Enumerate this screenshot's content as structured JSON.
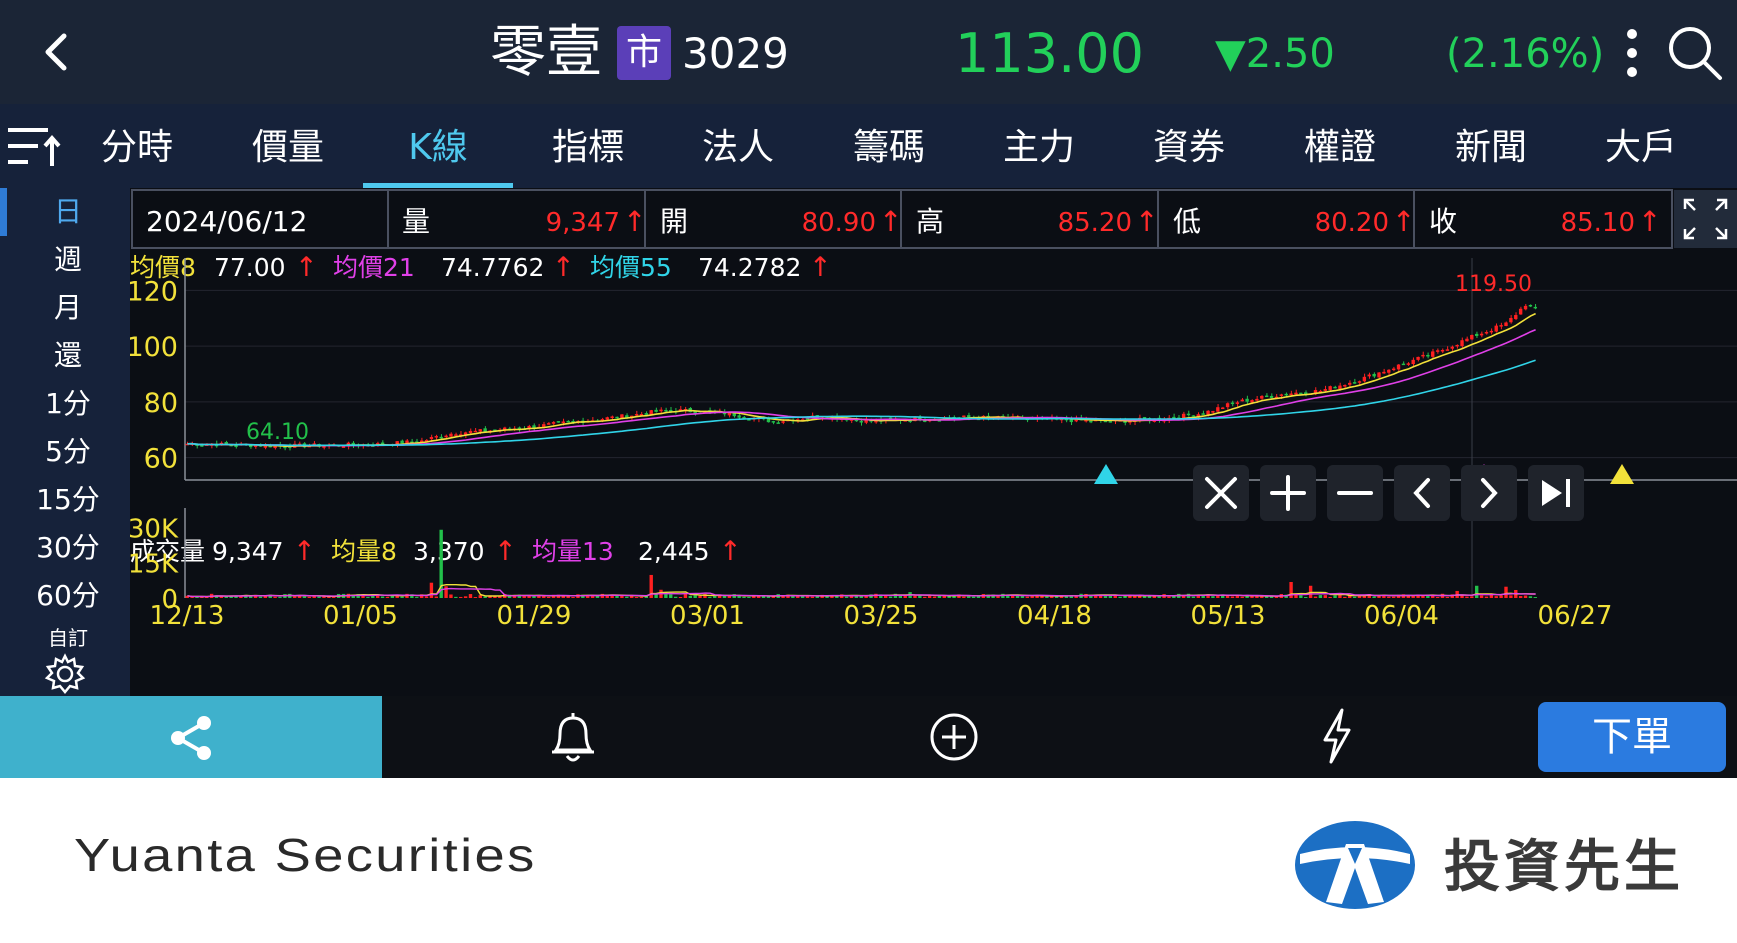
{
  "header": {
    "stock_name": "零壹",
    "market_badge": "市",
    "stock_code": "3029",
    "price": "113.00",
    "change": "▼2.50",
    "change_pct": "(2.16%)",
    "colors": {
      "down": "#22d05a",
      "up": "#ff2020"
    }
  },
  "tabs": [
    "分時",
    "價量",
    "K線",
    "指標",
    "法人",
    "籌碼",
    "主力",
    "資券",
    "權證",
    "新聞",
    "大戶"
  ],
  "active_tab": "K線",
  "periods": [
    "日",
    "週",
    "月",
    "還",
    "1分",
    "5分",
    "15分",
    "30分",
    "60分"
  ],
  "period_custom": "自訂",
  "active_period": "日",
  "ohlc": {
    "date": "2024/06/12",
    "volume_label": "量",
    "volume": "9,347",
    "open_label": "開",
    "open": "80.90",
    "high_label": "高",
    "high": "85.20",
    "low_label": "低",
    "low": "80.20",
    "close_label": "收",
    "close": "85.10",
    "arrow": "↑"
  },
  "ma_legend": [
    {
      "label": "均價8",
      "value": "77.00",
      "color": "#f2e13a"
    },
    {
      "label": "均價21",
      "value": "74.7762",
      "color": "#e040e8"
    },
    {
      "label": "均價55",
      "value": "74.2782",
      "color": "#30d4e8"
    }
  ],
  "vol_legend": [
    {
      "label": "成交量",
      "value": "9,347",
      "color": "#ffffff"
    },
    {
      "label": "均量8",
      "value": "3,370",
      "color": "#f2e13a"
    },
    {
      "label": "均量13",
      "value": "2,445",
      "color": "#e040e8"
    }
  ],
  "chart_controls": [
    "close",
    "zoom-in",
    "zoom-out",
    "prev",
    "next",
    "end"
  ],
  "chart_data": {
    "type": "candlestick",
    "price_axis": {
      "ticks": [
        120,
        100,
        80,
        60
      ],
      "range": [
        52,
        128
      ]
    },
    "volume_axis": {
      "tick_labels": [
        "30K",
        "15K",
        "0"
      ],
      "range": [
        0,
        34000
      ]
    },
    "x_labels": [
      "12/13",
      "01/05",
      "01/29",
      "03/01",
      "03/25",
      "04/18",
      "05/13",
      "06/04",
      "06/27"
    ],
    "max_label": "119.50",
    "min_label": "64.10",
    "close_anchors": [
      [
        0,
        65
      ],
      [
        20,
        64.2
      ],
      [
        40,
        64.8
      ],
      [
        48,
        66
      ],
      [
        52,
        68
      ],
      [
        55,
        69
      ],
      [
        60,
        69.5
      ],
      [
        70,
        71
      ],
      [
        80,
        73
      ],
      [
        90,
        75
      ],
      [
        96,
        76.5
      ],
      [
        100,
        77
      ],
      [
        110,
        76
      ],
      [
        120,
        73
      ],
      [
        130,
        75
      ],
      [
        140,
        73
      ],
      [
        150,
        74
      ],
      [
        160,
        74.5
      ],
      [
        170,
        74
      ],
      [
        180,
        73.5
      ],
      [
        190,
        73
      ],
      [
        200,
        74
      ],
      [
        208,
        76
      ],
      [
        215,
        80
      ],
      [
        225,
        83
      ],
      [
        232,
        84
      ],
      [
        240,
        88
      ],
      [
        248,
        93
      ],
      [
        256,
        98
      ],
      [
        264,
        104
      ],
      [
        270,
        108
      ],
      [
        274,
        115
      ],
      [
        276,
        113
      ]
    ],
    "volume_spikes": [
      [
        50,
        6500
      ],
      [
        52,
        29000
      ],
      [
        53,
        5000
      ],
      [
        95,
        9800
      ],
      [
        97,
        3500
      ],
      [
        148,
        2500
      ],
      [
        226,
        6800
      ],
      [
        230,
        5200
      ],
      [
        260,
        3000
      ],
      [
        264,
        5200
      ],
      [
        270,
        4800
      ],
      [
        272,
        3400
      ]
    ],
    "series_count": 277,
    "ma_colors": [
      "#f2e13a",
      "#e040e8",
      "#30d4e8"
    ]
  },
  "bottom_bar": {
    "order_label": "下單"
  },
  "footer": {
    "company": "Yuanta Securities",
    "brand": "投資先生"
  }
}
